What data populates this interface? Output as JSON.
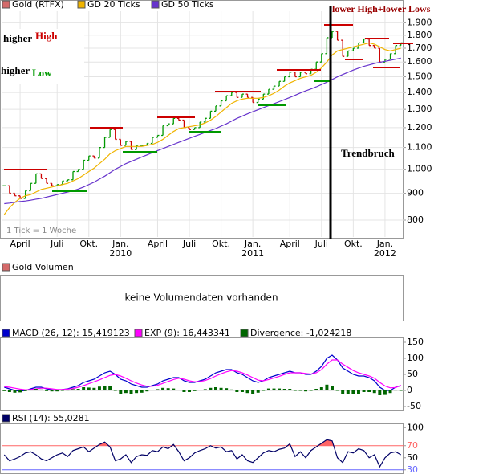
{
  "chart_data": [
    {
      "type": "price",
      "log_scale": true,
      "grid": true,
      "up_color": "#009900",
      "down_color": "#cc0000",
      "categories": [
        null,
        null,
        null,
        "April",
        null,
        null,
        null,
        null,
        null,
        null,
        "Juli",
        null,
        null,
        null,
        null,
        null,
        "Okt.",
        null,
        null,
        null,
        null,
        null,
        "Jan.",
        null,
        null,
        null,
        null,
        null,
        null,
        "April",
        null,
        null,
        null,
        null,
        null,
        "Juli",
        null,
        null,
        null,
        null,
        null,
        "Okt.",
        null,
        null,
        null,
        null,
        null,
        "Jan.",
        null,
        null,
        null,
        null,
        null,
        null,
        "April",
        null,
        null,
        null,
        null,
        null,
        "Juli",
        null,
        null,
        null,
        null,
        null,
        "Okt.",
        null,
        null,
        null,
        null,
        null,
        "Jan.",
        null,
        null,
        null
      ],
      "year_categories": [
        null,
        null,
        null,
        null,
        null,
        null,
        null,
        null,
        null,
        null,
        null,
        null,
        null,
        null,
        null,
        null,
        null,
        null,
        null,
        null,
        null,
        null,
        "2010",
        null,
        null,
        null,
        null,
        null,
        null,
        null,
        null,
        null,
        null,
        null,
        null,
        null,
        null,
        null,
        null,
        null,
        null,
        null,
        null,
        null,
        null,
        null,
        null,
        "2011",
        null,
        null,
        null,
        null,
        null,
        null,
        null,
        null,
        null,
        null,
        null,
        null,
        null,
        null,
        null,
        null,
        null,
        null,
        null,
        null,
        null,
        null,
        null,
        null,
        "2012",
        null,
        null,
        null
      ],
      "ylim": [
        743,
        2100
      ],
      "yticks": [
        {
          "value": 1900,
          "label": "1.900"
        },
        {
          "value": 1800,
          "label": "1.800"
        },
        {
          "value": 1700,
          "label": "1.700"
        },
        {
          "value": 1600,
          "label": "1.600"
        },
        {
          "value": 1500,
          "label": "1.500"
        },
        {
          "value": 1400,
          "label": "1.400"
        },
        {
          "value": 1300,
          "label": "1.300"
        },
        {
          "value": 1200,
          "label": "1.200"
        },
        {
          "value": 1100,
          "label": "1.100"
        },
        {
          "value": 1000,
          "label": "1.000"
        },
        900,
        800
      ],
      "series": [
        {
          "name": "Gold (RTFX)",
          "color": "#d46a6a",
          "style": "ohlc",
          "values": [
            930,
            900,
            890,
            880,
            910,
            940,
            980,
            960,
            940,
            930,
            935,
            950,
            955,
            990,
            1000,
            1040,
            1060,
            1050,
            1100,
            1150,
            1190,
            1140,
            1110,
            1130,
            1090,
            1110,
            1110,
            1120,
            1150,
            1160,
            1210,
            1220,
            1250,
            1240,
            1200,
            1190,
            1200,
            1230,
            1250,
            1290,
            1320,
            1350,
            1380,
            1400,
            1370,
            1390,
            1370,
            1340,
            1360,
            1390,
            1420,
            1440,
            1470,
            1500,
            1530,
            1500,
            1530,
            1520,
            1550,
            1600,
            1660,
            1780,
            1830,
            1760,
            1640,
            1680,
            1700,
            1740,
            1770,
            1720,
            1700,
            1600,
            1620,
            1660,
            1720,
            1740
          ]
        },
        {
          "name": "GD 20 Ticks",
          "color": "#f0b400",
          "style": "line",
          "values": [
            820,
            845,
            865,
            880,
            890,
            895,
            905,
            915,
            920,
            925,
            930,
            935,
            940,
            950,
            960,
            975,
            990,
            1005,
            1025,
            1045,
            1070,
            1085,
            1095,
            1105,
            1105,
            1105,
            1105,
            1110,
            1115,
            1125,
            1140,
            1160,
            1180,
            1195,
            1200,
            1205,
            1210,
            1215,
            1225,
            1240,
            1260,
            1285,
            1310,
            1335,
            1350,
            1360,
            1365,
            1365,
            1365,
            1370,
            1380,
            1395,
            1415,
            1440,
            1460,
            1475,
            1490,
            1500,
            1510,
            1530,
            1560,
            1600,
            1650,
            1680,
            1690,
            1700,
            1710,
            1720,
            1730,
            1740,
            1730,
            1710,
            1690,
            1680,
            1690,
            1700
          ]
        },
        {
          "name": "GD 50 Ticks",
          "color": "#6633cc",
          "style": "line",
          "values": [
            860,
            862,
            865,
            868,
            870,
            873,
            877,
            880,
            885,
            890,
            895,
            900,
            905,
            910,
            917,
            925,
            935,
            945,
            958,
            970,
            985,
            1000,
            1012,
            1025,
            1035,
            1045,
            1055,
            1065,
            1075,
            1085,
            1095,
            1105,
            1115,
            1125,
            1135,
            1145,
            1155,
            1165,
            1175,
            1185,
            1195,
            1208,
            1220,
            1235,
            1250,
            1262,
            1275,
            1287,
            1298,
            1310,
            1322,
            1333,
            1345,
            1357,
            1370,
            1383,
            1397,
            1410,
            1422,
            1435,
            1450,
            1465,
            1482,
            1500,
            1515,
            1530,
            1545,
            1558,
            1570,
            1580,
            1590,
            1598,
            1605,
            1612,
            1620,
            1628
          ]
        }
      ],
      "annotations": {
        "higher_high": "higher",
        "high": "High",
        "higher_low": "higher",
        "low": "Low",
        "trend_break": "Trendbruch",
        "lower": "lower High+lower Lows",
        "tick_note": "1 Tick = 1 Woche"
      }
    },
    {
      "type": "macd",
      "grid": false,
      "ylim": [
        -60,
        165
      ],
      "yticks": [
        150,
        100,
        50,
        0,
        -50
      ],
      "series": [
        {
          "name": "MACD (26, 12): 15,419123",
          "color": "#0000cc",
          "style": "line",
          "values": [
            10,
            5,
            0,
            -2,
            0,
            5,
            10,
            10,
            5,
            2,
            0,
            3,
            5,
            10,
            15,
            25,
            30,
            35,
            45,
            55,
            60,
            50,
            35,
            30,
            20,
            15,
            10,
            10,
            15,
            20,
            30,
            35,
            40,
            40,
            30,
            25,
            25,
            30,
            35,
            45,
            55,
            60,
            65,
            65,
            55,
            50,
            40,
            30,
            25,
            30,
            40,
            45,
            50,
            55,
            60,
            55,
            55,
            50,
            50,
            60,
            75,
            100,
            110,
            95,
            70,
            60,
            50,
            45,
            45,
            40,
            30,
            10,
            0,
            0,
            10,
            15
          ]
        },
        {
          "name": "EXP (9): 16,443341",
          "color": "#ff00ff",
          "style": "line",
          "values": [
            12,
            10,
            7,
            4,
            2,
            3,
            5,
            7,
            7,
            5,
            3,
            3,
            4,
            6,
            10,
            15,
            21,
            27,
            33,
            40,
            47,
            50,
            45,
            38,
            30,
            23,
            17,
            13,
            13,
            16,
            22,
            28,
            34,
            38,
            35,
            30,
            27,
            28,
            31,
            37,
            45,
            52,
            58,
            62,
            60,
            55,
            48,
            40,
            32,
            30,
            34,
            39,
            44,
            50,
            55,
            55,
            55,
            53,
            51,
            55,
            65,
            82,
            95,
            95,
            82,
            72,
            62,
            55,
            50,
            45,
            38,
            25,
            14,
            8,
            9,
            16
          ]
        },
        {
          "name": "Divergence: -1,024218",
          "color": "#006600",
          "style": "bar",
          "values": [
            -2,
            -5,
            -7,
            -6,
            -2,
            2,
            5,
            3,
            -2,
            -3,
            -3,
            0,
            1,
            4,
            5,
            10,
            9,
            8,
            12,
            15,
            13,
            0,
            -10,
            -8,
            -10,
            -8,
            -7,
            -3,
            2,
            4,
            8,
            7,
            6,
            2,
            -5,
            -5,
            -2,
            2,
            4,
            8,
            10,
            8,
            7,
            3,
            -5,
            -5,
            -8,
            -10,
            -7,
            0,
            6,
            6,
            6,
            5,
            5,
            0,
            0,
            -3,
            -1,
            5,
            10,
            18,
            15,
            0,
            -12,
            -12,
            -12,
            -10,
            -5,
            -5,
            -8,
            -15,
            -14,
            -8,
            1,
            -1
          ]
        }
      ]
    },
    {
      "type": "rsi",
      "grid": false,
      "ylim": [
        23,
        107
      ],
      "yticks": [
        100,
        70,
        50,
        30
      ],
      "overbought": 70,
      "oversold": 30,
      "overbought_color": "#ff6666",
      "oversold_color": "#6666ff",
      "series": [
        {
          "name": "RSI (14): 55,0281",
          "color": "#000066",
          "style": "line",
          "values": [
            55,
            45,
            48,
            52,
            58,
            60,
            55,
            48,
            45,
            50,
            55,
            58,
            52,
            62,
            65,
            68,
            60,
            66,
            72,
            76,
            68,
            45,
            48,
            55,
            42,
            52,
            55,
            54,
            62,
            60,
            68,
            65,
            72,
            60,
            45,
            50,
            58,
            62,
            65,
            70,
            66,
            68,
            60,
            62,
            48,
            55,
            45,
            42,
            50,
            58,
            62,
            60,
            64,
            66,
            73,
            52,
            60,
            50,
            62,
            68,
            74,
            80,
            78,
            50,
            42,
            60,
            58,
            65,
            62,
            50,
            55,
            35,
            50,
            58,
            60,
            55
          ]
        }
      ]
    }
  ],
  "volume": {
    "legend": "Gold Volumen",
    "color": "#d46a6a",
    "message": "keine Volumendaten vorhanden"
  }
}
